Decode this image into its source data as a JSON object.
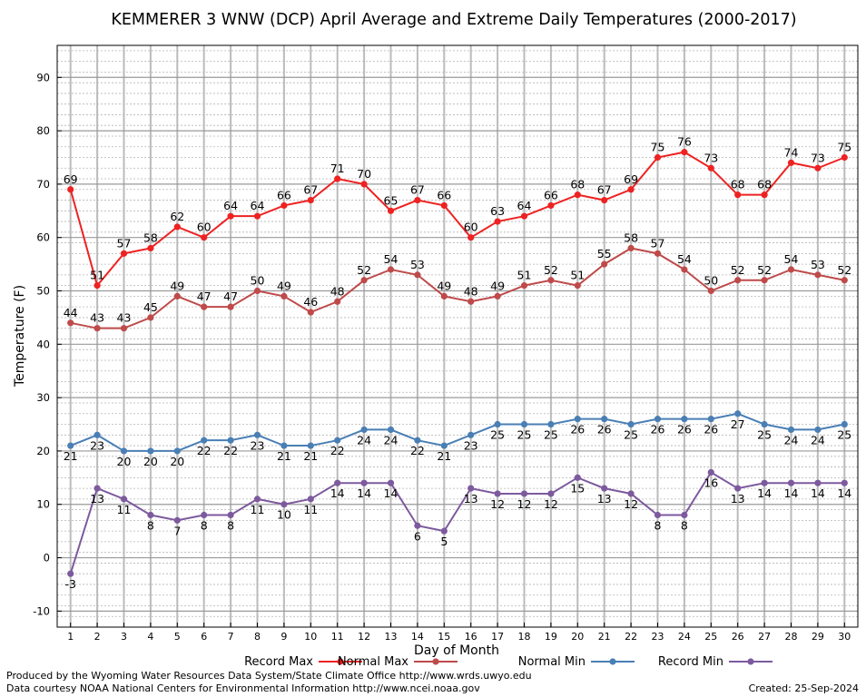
{
  "chart_data": {
    "type": "line",
    "title": "KEMMERER 3 WNW (DCP) April Average and Extreme Daily Temperatures (2000-2017)",
    "xlabel": "Day of Month",
    "ylabel": "Temperature (F)",
    "x": [
      1,
      2,
      3,
      4,
      5,
      6,
      7,
      8,
      9,
      10,
      11,
      12,
      13,
      14,
      15,
      16,
      17,
      18,
      19,
      20,
      21,
      22,
      23,
      24,
      25,
      26,
      27,
      28,
      29,
      30
    ],
    "xlim": [
      0.5,
      30.5
    ],
    "ylim": [
      -13,
      96
    ],
    "yticks": [
      -10,
      0,
      10,
      20,
      30,
      40,
      50,
      60,
      70,
      80,
      90
    ],
    "grid": true,
    "legend_position": "bottom",
    "series": [
      {
        "name": "Record Max",
        "color": "#ee2222",
        "values": [
          69,
          51,
          57,
          58,
          62,
          60,
          64,
          64,
          66,
          67,
          71,
          70,
          65,
          67,
          66,
          60,
          63,
          64,
          66,
          68,
          67,
          69,
          75,
          76,
          73,
          68,
          68,
          74,
          73,
          75
        ]
      },
      {
        "name": "Normal Max",
        "color": "#bf4a4a",
        "values": [
          44,
          43,
          43,
          45,
          49,
          47,
          47,
          50,
          49,
          46,
          48,
          52,
          54,
          53,
          49,
          48,
          49,
          51,
          52,
          51,
          55,
          58,
          57,
          54,
          50,
          52,
          52,
          54,
          53,
          52
        ]
      },
      {
        "name": "Normal Min",
        "color": "#4a7fb5",
        "values": [
          21,
          23,
          20,
          20,
          20,
          22,
          22,
          23,
          21,
          21,
          22,
          24,
          24,
          22,
          21,
          23,
          25,
          25,
          25,
          26,
          26,
          25,
          26,
          26,
          26,
          27,
          25,
          24,
          24,
          25
        ]
      },
      {
        "name": "Record Min",
        "color": "#7d5a9e",
        "values": [
          -3,
          13,
          11,
          8,
          7,
          8,
          8,
          11,
          10,
          11,
          14,
          14,
          14,
          6,
          5,
          13,
          12,
          12,
          12,
          15,
          13,
          12,
          8,
          8,
          16,
          13,
          14,
          14,
          14,
          14
        ]
      }
    ]
  },
  "footer": {
    "credit_line1": "Produced by the Wyoming Water Resources Data System/State Climate Office http://www.wrds.uwyo.edu",
    "credit_line2": "Data courtesy NOAA National Centers for Environmental Information http://www.ncei.noaa.gov",
    "created": "Created:  25-Sep-2024"
  }
}
